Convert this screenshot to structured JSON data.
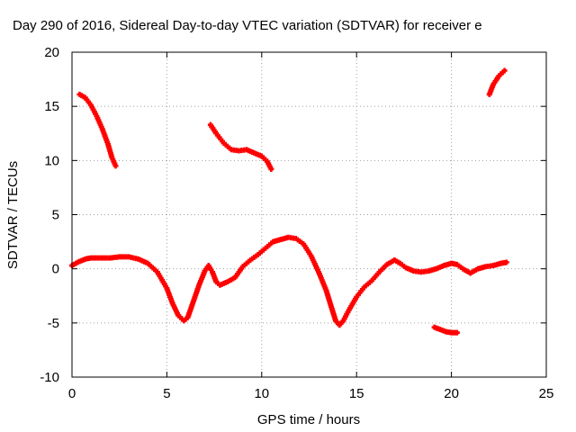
{
  "chart_data": {
    "type": "scatter",
    "title": "Day 290 of 2016, Sidereal Day-to-day VTEC variation (SDTVAR) for receiver e",
    "xlabel": "GPS time / hours",
    "ylabel": "SDTVAR / TECUs",
    "xlim": [
      0,
      25
    ],
    "ylim": [
      -10,
      20
    ],
    "x_ticks": [
      "0",
      "5",
      "10",
      "15",
      "20",
      "25"
    ],
    "y_ticks": [
      "-10",
      "-5",
      "0",
      "5",
      "10",
      "15",
      "20"
    ],
    "grid": true,
    "marker_color": "#ff0000",
    "series": [
      {
        "points": [
          [
            0.0,
            0.3
          ],
          [
            0.3,
            0.6
          ],
          [
            0.7,
            0.9
          ],
          [
            1.0,
            1.0
          ],
          [
            1.5,
            1.0
          ],
          [
            2.0,
            1.0
          ],
          [
            2.5,
            1.1
          ],
          [
            3.0,
            1.1
          ],
          [
            3.5,
            0.9
          ],
          [
            4.0,
            0.5
          ],
          [
            4.5,
            -0.3
          ],
          [
            5.0,
            -1.8
          ],
          [
            5.3,
            -3.2
          ],
          [
            5.6,
            -4.3
          ],
          [
            5.9,
            -4.8
          ],
          [
            6.1,
            -4.5
          ],
          [
            6.4,
            -3.0
          ],
          [
            6.7,
            -1.5
          ],
          [
            7.0,
            -0.2
          ],
          [
            7.2,
            0.3
          ],
          [
            7.4,
            -0.3
          ],
          [
            7.6,
            -1.2
          ],
          [
            7.8,
            -1.5
          ],
          [
            8.2,
            -1.2
          ],
          [
            8.6,
            -0.8
          ],
          [
            9.0,
            0.2
          ],
          [
            9.4,
            0.8
          ],
          [
            9.8,
            1.3
          ],
          [
            10.2,
            1.9
          ],
          [
            10.6,
            2.5
          ],
          [
            11.0,
            2.7
          ],
          [
            11.4,
            2.9
          ],
          [
            11.8,
            2.8
          ],
          [
            12.2,
            2.3
          ],
          [
            12.6,
            1.2
          ],
          [
            13.0,
            -0.3
          ],
          [
            13.4,
            -2.0
          ],
          [
            13.7,
            -3.7
          ],
          [
            13.9,
            -4.8
          ],
          [
            14.1,
            -5.2
          ],
          [
            14.3,
            -4.8
          ],
          [
            14.6,
            -3.8
          ],
          [
            15.0,
            -2.6
          ],
          [
            15.4,
            -1.7
          ],
          [
            15.8,
            -1.1
          ],
          [
            16.2,
            -0.3
          ],
          [
            16.6,
            0.4
          ],
          [
            17.0,
            0.8
          ],
          [
            17.3,
            0.5
          ],
          [
            17.6,
            0.1
          ],
          [
            18.0,
            -0.2
          ],
          [
            18.4,
            -0.3
          ],
          [
            18.8,
            -0.2
          ],
          [
            19.2,
            0.0
          ],
          [
            19.6,
            0.3
          ],
          [
            20.0,
            0.5
          ],
          [
            20.3,
            0.4
          ],
          [
            20.6,
            0.0
          ],
          [
            21.0,
            -0.4
          ],
          [
            21.4,
            0.0
          ],
          [
            21.8,
            0.2
          ],
          [
            22.2,
            0.3
          ],
          [
            22.6,
            0.5
          ],
          [
            22.9,
            0.6
          ]
        ]
      },
      {
        "points": [
          [
            0.4,
            16.1
          ],
          [
            0.7,
            15.8
          ],
          [
            1.0,
            15.1
          ],
          [
            1.3,
            14.1
          ],
          [
            1.6,
            12.9
          ],
          [
            1.9,
            11.5
          ],
          [
            2.1,
            10.3
          ],
          [
            2.3,
            9.5
          ]
        ]
      },
      {
        "points": [
          [
            7.3,
            13.3
          ],
          [
            7.6,
            12.5
          ],
          [
            8.0,
            11.6
          ],
          [
            8.4,
            11.0
          ],
          [
            8.8,
            10.9
          ],
          [
            9.2,
            11.0
          ],
          [
            9.6,
            10.7
          ],
          [
            10.0,
            10.4
          ],
          [
            10.3,
            9.9
          ],
          [
            10.5,
            9.2
          ]
        ]
      },
      {
        "points": [
          [
            19.1,
            -5.4
          ],
          [
            19.4,
            -5.6
          ],
          [
            19.7,
            -5.8
          ],
          [
            20.0,
            -5.9
          ],
          [
            20.3,
            -5.9
          ]
        ]
      },
      {
        "points": [
          [
            22.0,
            16.1
          ],
          [
            22.2,
            17.0
          ],
          [
            22.5,
            17.8
          ],
          [
            22.8,
            18.3
          ]
        ]
      }
    ]
  }
}
